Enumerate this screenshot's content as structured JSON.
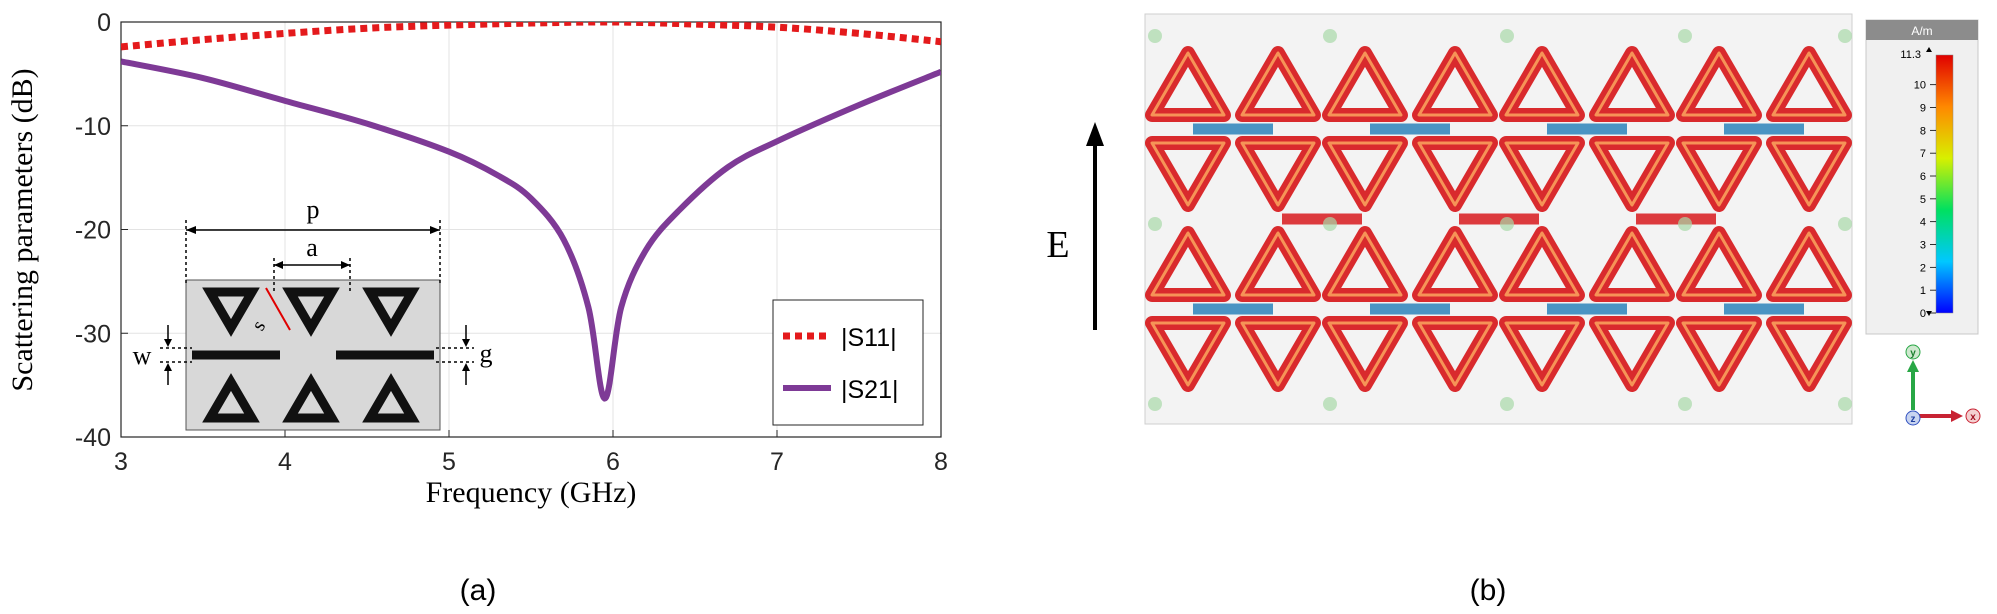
{
  "chart_data": [
    {
      "type": "line",
      "panel": "(a)",
      "xlabel": "Frequency (GHz)",
      "ylabel": "Scattering parameters (dB)",
      "xlim": [
        3,
        8
      ],
      "ylim": [
        -40,
        0
      ],
      "xticks": [
        "3",
        "4",
        "5",
        "6",
        "7",
        "8"
      ],
      "yticks": [
        "0",
        "-10",
        "-20",
        "-30",
        "-40"
      ],
      "grid": true,
      "legend_position": "bottom-right",
      "series": [
        {
          "name": "|S11|",
          "style": "dotted",
          "color": "#e41a1c",
          "x": [
            3.0,
            3.5,
            4.0,
            4.5,
            5.0,
            5.5,
            6.0,
            6.5,
            7.0,
            7.5,
            8.0
          ],
          "y": [
            -2.4,
            -1.7,
            -1.1,
            -0.6,
            -0.3,
            -0.1,
            0.0,
            -0.2,
            -0.5,
            -1.1,
            -1.9
          ]
        },
        {
          "name": "|S21|",
          "style": "solid",
          "color": "#7e3a96",
          "x": [
            3.0,
            3.5,
            4.0,
            4.5,
            5.0,
            5.3,
            5.5,
            5.7,
            5.85,
            5.95,
            6.05,
            6.2,
            6.4,
            6.7,
            7.0,
            7.5,
            8.0
          ],
          "y": [
            -3.8,
            -5.4,
            -7.6,
            -9.8,
            -12.5,
            -14.8,
            -17.0,
            -21.0,
            -27.5,
            -36.3,
            -27.5,
            -22.0,
            -18.2,
            -14.0,
            -11.5,
            -8.0,
            -4.8
          ]
        }
      ],
      "inset": {
        "labels": [
          "p",
          "a",
          "s",
          "w",
          "g"
        ]
      }
    },
    {
      "type": "heatmap",
      "panel": "(b)",
      "field_label": "E",
      "colorbar": {
        "unit": "A/m",
        "max_label": "11.3",
        "ticks": [
          "10",
          "9",
          "8",
          "7",
          "6",
          "5",
          "4",
          "3",
          "2",
          "1",
          "0"
        ]
      },
      "axes_triad": [
        "y",
        "z",
        "x"
      ]
    }
  ],
  "captions": {
    "a": "(a)",
    "b": "(b)"
  },
  "colors": {
    "s11": "#e41a1c",
    "s21": "#7e3a96",
    "field_high": "#d7191c",
    "field_mid": "#fdae61",
    "field_low": "#2b83ba"
  }
}
